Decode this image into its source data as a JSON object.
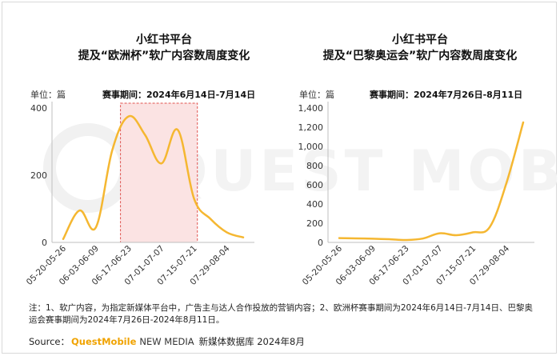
{
  "charts": [
    {
      "title_line1": "小红书平台",
      "title_line2": "提及“欧洲杯”软广内容数周度变化",
      "unit_label": "单位：篇",
      "period_label": "赛事期间：2024年6月14日-7月14日"
    },
    {
      "title_line1": "小红书平台",
      "title_line2": "提及“巴黎奥运会”软广内容数周度变化",
      "unit_label": "单位：篇",
      "period_label": "赛事期间：2024年7月26日-8月11日"
    }
  ],
  "note": "注：1、软广内容，为指定新媒体平台中，广告主与达人合作投放的营销内容；2、欧洲杯赛事期间为2024年6月14日-7月14日、巴黎奥运会赛事期间为2024年7月26日-2024年8月11日。",
  "source": {
    "label": "Source：",
    "brand_orange": "QuestMobile",
    "brand_dark": "NEW MEDIA",
    "rest": "新媒体数据库 2024年8月"
  },
  "colors": {
    "line": "#f5b731",
    "highlight_fill": "#fbe3e3",
    "highlight_border": "#e0534f",
    "axis": "#bfbfbf"
  },
  "chart_data": [
    {
      "type": "line",
      "categories": [
        "05-20-05-26",
        "06-03-06-09",
        "06-17-06-23",
        "07-01-07-07",
        "07-15-07-21",
        "07-29-08-04"
      ],
      "x": [
        0,
        1,
        2,
        3,
        4,
        5,
        6,
        7,
        8,
        9,
        10,
        11
      ],
      "values": [
        10,
        95,
        45,
        275,
        375,
        320,
        235,
        335,
        130,
        70,
        30,
        15
      ],
      "tick_positions": [
        0,
        2,
        4,
        6,
        8,
        10
      ],
      "ylim": [
        0,
        400
      ],
      "yticks": [
        0,
        200,
        400
      ],
      "highlight_range": [
        3.5,
        8.2
      ],
      "smooth": true,
      "grid": false
    },
    {
      "type": "line",
      "categories": [
        "05-20-05-26",
        "06-03-06-09",
        "06-17-06-23",
        "07-01-07-07",
        "07-15-07-21",
        "07-29-08-04"
      ],
      "x": [
        0,
        1,
        2,
        3,
        4,
        5,
        6,
        7,
        8,
        9,
        10,
        11
      ],
      "values": [
        45,
        42,
        38,
        33,
        25,
        40,
        95,
        75,
        105,
        160,
        620,
        1250
      ],
      "tick_positions": [
        0,
        2,
        4,
        6,
        8,
        10
      ],
      "ylim": [
        0,
        1400
      ],
      "yticks": [
        0,
        200,
        400,
        600,
        800,
        1000,
        1200,
        1400
      ],
      "ytick_labels": [
        "0",
        "200",
        "400",
        "600",
        "800",
        "1,000",
        "1,200",
        "1,400"
      ],
      "smooth": true,
      "grid": false
    }
  ]
}
